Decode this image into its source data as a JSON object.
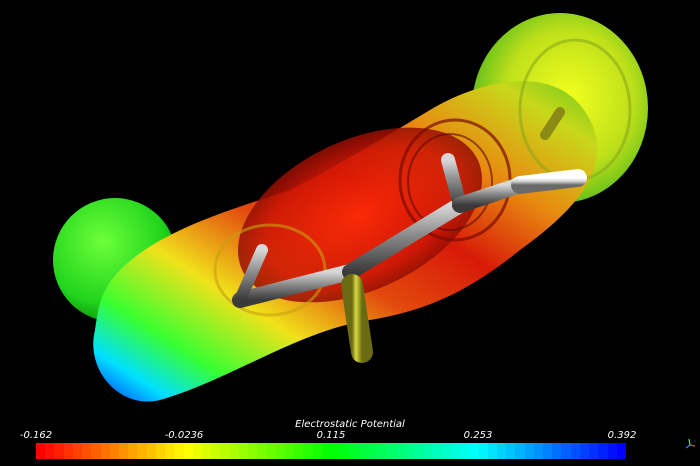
{
  "scene": {
    "legend": {
      "title": "Electrostatic Potential",
      "ticks": [
        "-0.162",
        "-0.0236",
        "0.115",
        "0.253",
        "0.392"
      ],
      "range": [
        -0.162,
        0.392
      ],
      "colormap": [
        "#ff0000",
        "#ffff00",
        "#00ff00",
        "#00ffff",
        "#0000ff"
      ]
    },
    "atom_colors": {
      "carbon": "#8a8a8a",
      "hydrogen": "#e6e6e6",
      "sulfur": "#c8c832"
    },
    "axes_widget": "orientation-axes-icon"
  }
}
